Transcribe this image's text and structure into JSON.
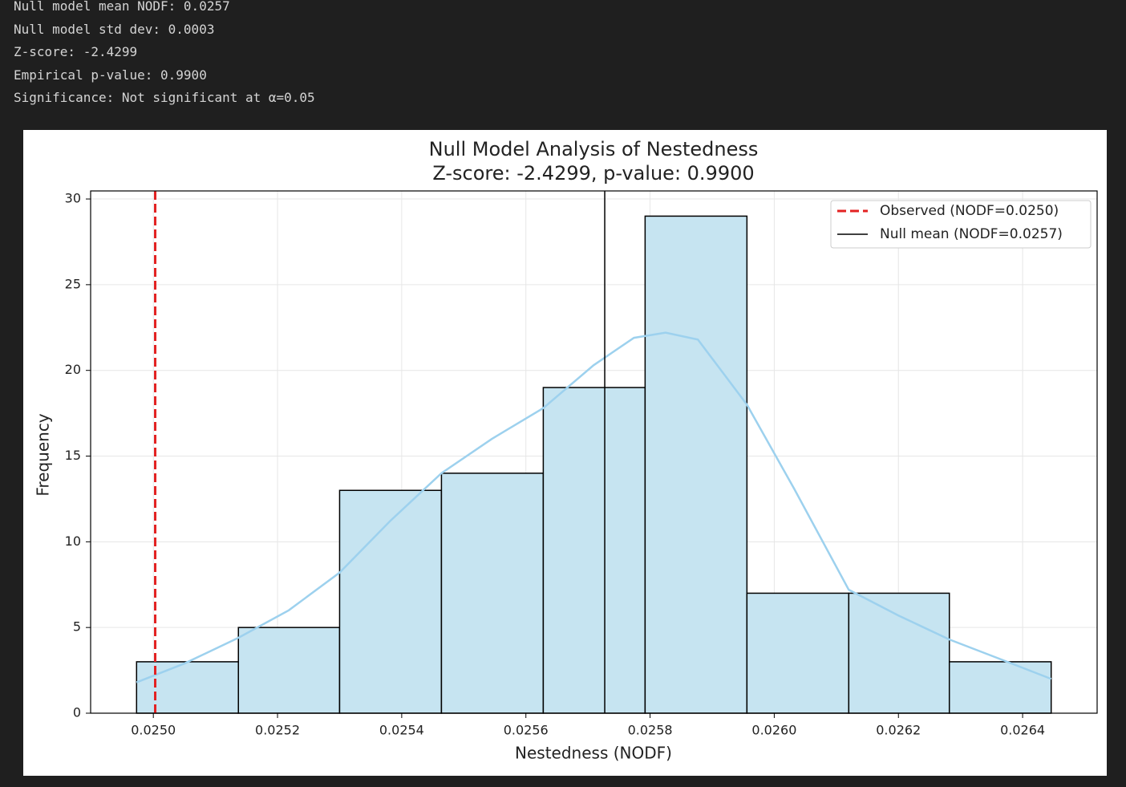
{
  "console": {
    "lines": [
      "Null model mean NODF: 0.0257",
      "Null model std dev: 0.0003",
      "Z-score: -2.4299",
      "Empirical p-value: 0.9900",
      "Significance: Not significant at α=0.05"
    ]
  },
  "chart_data": {
    "type": "histogram",
    "title": "Null Model Analysis of Nestedness",
    "subtitle": "Z-score: -2.4299, p-value: 0.9900",
    "x_label": "Nestedness (NODF)",
    "y_label": "Frequency",
    "bins": [
      0.024973,
      0.025137,
      0.0253,
      0.025464,
      0.025628,
      0.025792,
      0.025956,
      0.02612,
      0.026282,
      0.026446
    ],
    "counts": [
      3,
      5,
      13,
      14,
      19,
      29,
      7,
      7,
      3
    ],
    "color": "#c6e4f1",
    "edge_color": "#000000",
    "kde": {
      "color": "#9dd1ee",
      "x": [
        0.024973,
        0.02505,
        0.025137,
        0.025218,
        0.0253,
        0.025381,
        0.025464,
        0.025545,
        0.025628,
        0.025709,
        0.025774,
        0.025825,
        0.025877,
        0.025956,
        0.026032,
        0.02612,
        0.0262,
        0.026282,
        0.026368,
        0.026446
      ],
      "values": [
        1.8,
        2.9,
        4.4,
        6.0,
        8.2,
        11.2,
        14.0,
        16.0,
        17.8,
        20.3,
        21.9,
        22.2,
        21.8,
        18.0,
        13.1,
        7.2,
        5.7,
        4.3,
        3.1,
        2.0
      ]
    },
    "vlines": [
      {
        "name": "Observed (NODF=0.0250)",
        "x": 0.025003,
        "color": "#e32222",
        "dashed": true
      },
      {
        "name": "Null mean (NODF=0.0257)",
        "x": 0.025727,
        "color": "#000000",
        "dashed": false
      }
    ],
    "legend": "upper right",
    "grid": true,
    "xlim": [
      0.024899,
      0.02652
    ],
    "ylim": [
      0,
      30.47
    ],
    "xticks": [
      {
        "value": 0.025,
        "label": "0.0250"
      },
      {
        "value": 0.0252,
        "label": "0.0252"
      },
      {
        "value": 0.0254,
        "label": "0.0254"
      },
      {
        "value": 0.0256,
        "label": "0.0256"
      },
      {
        "value": 0.0258,
        "label": "0.0258"
      },
      {
        "value": 0.026,
        "label": "0.0260"
      },
      {
        "value": 0.0262,
        "label": "0.0262"
      },
      {
        "value": 0.0264,
        "label": "0.0264"
      }
    ],
    "yticks": [
      0,
      5,
      10,
      15,
      20,
      25,
      30
    ]
  }
}
